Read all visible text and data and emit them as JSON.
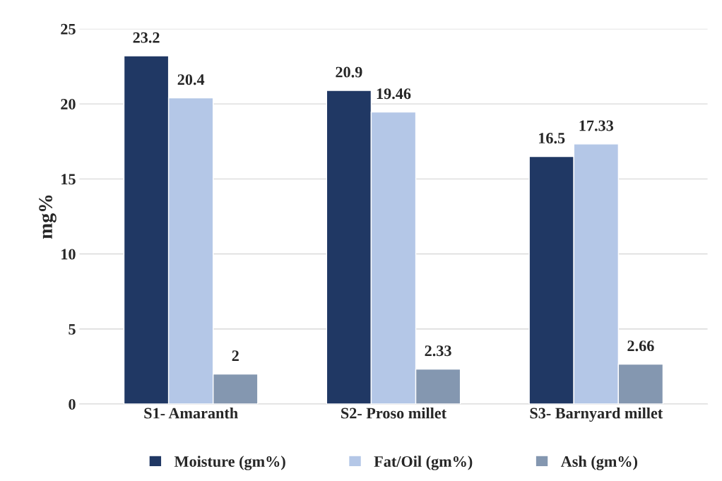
{
  "chart_data": {
    "type": "bar",
    "ylabel": "mg%",
    "categories": [
      "S1- Amaranth",
      "S2- Proso millet",
      "S3- Barnyard millet"
    ],
    "series": [
      {
        "name": "Moisture (gm%)",
        "color": "#203864",
        "values": [
          23.2,
          20.9,
          16.5
        ]
      },
      {
        "name": "Fat/Oil (gm%)",
        "color": "#b4c7e7",
        "values": [
          20.4,
          19.46,
          17.33
        ]
      },
      {
        "name": "Ash (gm%)",
        "color": "#8497b0",
        "values": [
          2,
          2.33,
          2.66
        ]
      }
    ],
    "ylim": [
      0,
      25
    ],
    "yticks": [
      0,
      5,
      10,
      15,
      20,
      25
    ],
    "grid": "y",
    "legend": "bottom",
    "data_labels": true
  }
}
